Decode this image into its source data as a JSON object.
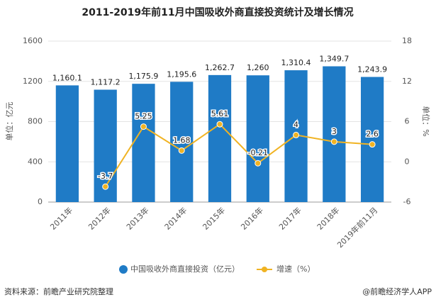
{
  "chart_data": {
    "type": "bar",
    "title": "2011-2019年前11月中国吸收外商直接投资统计及增长情况",
    "categories": [
      "2011年",
      "2012年",
      "2013年",
      "2014年",
      "2015年",
      "2016年",
      "2017年",
      "2018年",
      "2019年前11月"
    ],
    "series": [
      {
        "name": "中国吸收外商直接投资（亿元）",
        "type": "bar",
        "color": "#1f7bc6",
        "values": [
          1160.1,
          1117.2,
          1175.9,
          1195.6,
          1262.7,
          1260,
          1310.4,
          1349.7,
          1243.9
        ],
        "value_labels": [
          "1,160.1",
          "1,117.2",
          "1,175.9",
          "1,195.6",
          "1,262.7",
          "1,260",
          "1,310.4",
          "1,349.7",
          "1,243.9"
        ]
      },
      {
        "name": "增速（%）",
        "type": "line",
        "axis": "y2",
        "color": "#f0b323",
        "values": [
          null,
          -3.7,
          5.25,
          1.68,
          5.61,
          -0.21,
          4,
          3,
          2.6
        ]
      }
    ],
    "ylabel": "单位：亿元",
    "y2label": "单位：%",
    "ylim": [
      0,
      1600
    ],
    "yticks": [
      0,
      400,
      800,
      1200,
      1600
    ],
    "y2lim": [
      -6,
      18
    ],
    "y2ticks": [
      -6,
      0,
      6,
      12,
      18
    ],
    "legend": "bottom",
    "footer": {
      "source": "资料来源：前瞻产业研究院整理",
      "brand": "@前瞻经济学人APP"
    }
  }
}
